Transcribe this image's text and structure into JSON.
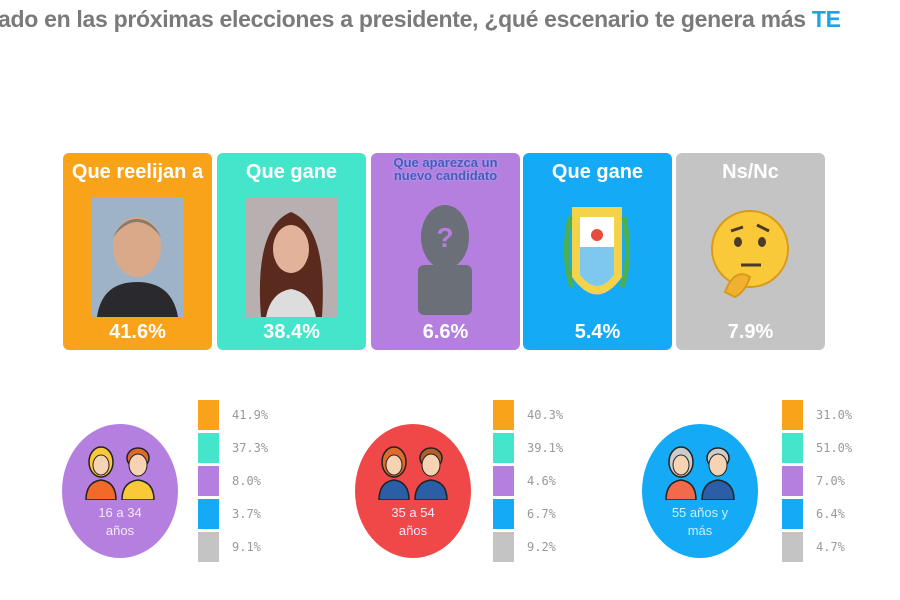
{
  "title": {
    "text": "ado en las próximas elecciones a presidente, ¿qué escenario te genera más ",
    "highlight": "TE"
  },
  "colors": {
    "orange": "#f9a31b",
    "teal": "#45e5cc",
    "purple": "#b57fe0",
    "blue": "#14aaf5",
    "gray": "#c4c4c4",
    "red": "#f04848",
    "title": "#7a7a7a"
  },
  "chart_data": {
    "type": "bar",
    "categories": [
      "Que reelijan a",
      "Que gane",
      "Que aparezca un nuevo candidato",
      "Que gane",
      "Ns/Nc"
    ],
    "values": [
      41.6,
      38.4,
      6.6,
      5.4,
      7.9
    ],
    "value_labels": [
      "41.6%",
      "38.4%",
      "6.6%",
      "5.4%",
      "7.9%"
    ],
    "icons": [
      "candidate-photo-man",
      "candidate-photo-woman",
      "unknown-silhouette-icon",
      "party-shield-icon",
      "thinking-face-emoji"
    ],
    "age_groups": [
      {
        "label": "16 a 34 años",
        "values": [
          41.9,
          37.3,
          8.0,
          3.7,
          9.1
        ],
        "value_labels": [
          "41.9%",
          "37.3%",
          "8.0%",
          "3.7%",
          "9.1%"
        ]
      },
      {
        "label": "35 a 54 años",
        "values": [
          40.3,
          39.1,
          4.6,
          6.7,
          9.2
        ],
        "value_labels": [
          "40.3%",
          "39.1%",
          "4.6%",
          "6.7%",
          "9.2%"
        ]
      },
      {
        "label": "55 años y más",
        "values": [
          31.0,
          51.0,
          7.0,
          6.4,
          4.7
        ],
        "value_labels": [
          "31.0%",
          "51.0%",
          "7.0%",
          "6.4%",
          "4.7%"
        ]
      }
    ]
  }
}
